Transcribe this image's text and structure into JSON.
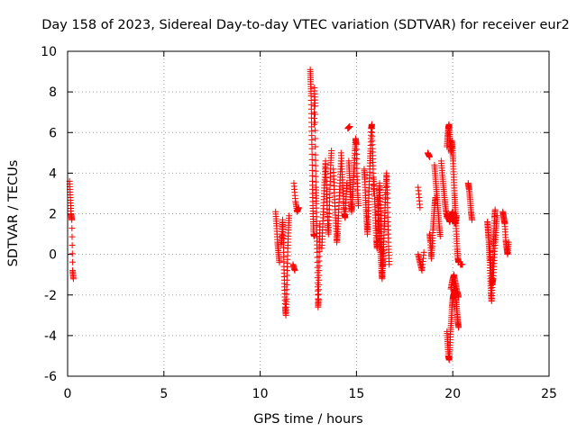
{
  "chart_data": {
    "type": "scatter",
    "title": "Day 158 of 2023, Sidereal Day-to-day VTEC variation (SDTVAR) for receiver eur2",
    "xlabel": "GPS time / hours",
    "ylabel": "SDTVAR / TECUs",
    "xlim": [
      0,
      25
    ],
    "ylim": [
      -6,
      10
    ],
    "x_ticks": [
      0,
      5,
      10,
      15,
      20,
      25
    ],
    "y_ticks": [
      -6,
      -4,
      -2,
      0,
      2,
      4,
      6,
      8,
      10
    ],
    "x_tick_labels": [
      "0",
      "5",
      "10",
      "15",
      "20",
      "25"
    ],
    "y_tick_labels": [
      "-6",
      "-4",
      "-2",
      "0",
      "2",
      "4",
      "6",
      "8",
      "10"
    ],
    "grid": true,
    "marker": "+",
    "color": "#ff0000",
    "series": [
      {
        "name": "SDTVAR",
        "tracks": [
          {
            "t0": 0.1,
            "t1": 0.3,
            "y": [
              3.6,
              2.8,
              2.0,
              1.7,
              -0.8,
              -1.2
            ]
          },
          {
            "t0": 10.8,
            "t1": 11.0,
            "y": [
              2.1,
              1.4,
              0.6,
              0.1,
              -0.4
            ]
          },
          {
            "t0": 11.1,
            "t1": 11.5,
            "y": [
              0.5,
              1.0,
              1.7,
              0.8,
              -0.6,
              -1.6,
              -2.6,
              -3.0,
              -2.2,
              -0.8,
              0.3,
              1.2,
              1.9
            ]
          },
          {
            "t0": 11.7,
            "t1": 11.8,
            "y": [
              -0.5,
              -0.8
            ]
          },
          {
            "t0": 11.75,
            "t1": 12.0,
            "y": [
              3.5,
              2.6,
              2.1,
              2.3
            ]
          },
          {
            "t0": 12.6,
            "t1": 12.8,
            "y": [
              9.1,
              8.5,
              7.8,
              6.5,
              5.2,
              3.6,
              2.4,
              1.6,
              1.0,
              0.9
            ]
          },
          {
            "t0": 12.8,
            "t1": 13.1,
            "y": [
              6.4,
              8.2,
              7.3,
              4.9,
              3.3,
              2.5,
              1.2,
              0.1,
              -1.4,
              -2.6,
              -2.2,
              -0.8,
              0.6,
              1.5
            ]
          },
          {
            "t0": 13.2,
            "t1": 13.7,
            "y": [
              0.3,
              1.2,
              2.1,
              3.0,
              3.8,
              4.6,
              3.6,
              2.6,
              1.5,
              1.0,
              2.0,
              3.2,
              4.4,
              5.1
            ]
          },
          {
            "t0": 13.8,
            "t1": 14.2,
            "y": [
              4.2,
              3.2,
              2.2,
              1.4,
              0.6,
              1.1,
              1.9,
              2.9,
              3.8,
              4.6
            ]
          },
          {
            "t0": 14.2,
            "t1": 14.5,
            "y": [
              5.0,
              4.2,
              3.4,
              2.6,
              2.0,
              1.8,
              2.7,
              3.5
            ]
          },
          {
            "t0": 14.55,
            "t1": 14.65,
            "y": [
              6.2,
              6.3
            ]
          },
          {
            "t0": 14.6,
            "t1": 15.1,
            "y": [
              4.6,
              4.0,
              3.3,
              2.6,
              2.1,
              2.5,
              3.1,
              3.8,
              4.4,
              5.1,
              5.7,
              5.4,
              4.0,
              3.0,
              2.4
            ]
          },
          {
            "t0": 15.4,
            "t1": 15.9,
            "y": [
              4.2,
              3.7,
              2.9,
              2.2,
              1.6,
              1.0,
              1.7,
              2.6,
              3.6,
              4.5,
              5.2,
              6.2,
              6.4,
              5.2,
              4.2,
              3.0
            ]
          },
          {
            "t0": 15.9,
            "t1": 16.4,
            "y": [
              3.7,
              3.0,
              2.2,
              1.4,
              0.7,
              0.3,
              0.9,
              1.8,
              2.8,
              3.5,
              2.6,
              1.6,
              0.6,
              -0.1,
              -0.7,
              0.2
            ]
          },
          {
            "t0": 16.1,
            "t1": 16.7,
            "y": [
              2.8,
              2.2,
              1.6,
              0.9,
              0.4,
              -0.2,
              -0.8,
              -1.2,
              -0.6,
              0.2,
              1.1,
              1.9,
              2.7,
              3.4,
              4.0,
              3.0,
              1.6,
              0.4,
              -0.5
            ]
          },
          {
            "t0": 18.2,
            "t1": 18.3,
            "y": [
              3.3,
              2.3
            ]
          },
          {
            "t0": 18.2,
            "t1": 18.5,
            "y": [
              0.0,
              -0.4,
              -0.8,
              0.1
            ]
          },
          {
            "t0": 18.7,
            "t1": 18.8,
            "y": [
              5.0,
              4.8
            ]
          },
          {
            "t0": 18.8,
            "t1": 19.1,
            "y": [
              1.0,
              0.6,
              -0.2,
              0.4,
              1.2,
              1.8,
              2.4,
              2.8
            ]
          },
          {
            "t0": 19.05,
            "t1": 19.35,
            "y": [
              4.4,
              3.8,
              3.2,
              2.6,
              2.0,
              1.4,
              0.9
            ]
          },
          {
            "t0": 19.4,
            "t1": 19.7,
            "y": [
              4.6,
              3.9,
              3.3,
              2.7,
              2.2,
              1.8
            ]
          },
          {
            "t0": 19.7,
            "t1": 20.3,
            "y": [
              5.3,
              5.8,
              6.2,
              6.4,
              5.9,
              5.4,
              5.0,
              5.6,
              5.2,
              4.6,
              3.8,
              3.0,
              2.4,
              1.8,
              1.0,
              0.3,
              -0.2,
              -0.4
            ]
          },
          {
            "t0": 19.7,
            "t1": 20.2,
            "y": [
              2.0,
              1.8,
              1.6,
              1.9,
              2.1,
              1.7,
              1.5,
              1.9
            ]
          },
          {
            "t0": 19.7,
            "t1": 20.3,
            "y": [
              -3.8,
              -4.4,
              -5.0,
              -5.2,
              -4.6,
              -3.8,
              -3.2,
              -2.6,
              -2.2,
              -2.0,
              -1.9,
              -1.7,
              -2.0,
              -2.4,
              -2.9,
              -3.3,
              -3.6
            ]
          },
          {
            "t0": 19.9,
            "t1": 20.3,
            "y": [
              -1.7,
              -1.3,
              -1.0,
              -1.4,
              -1.8,
              -2.1
            ]
          },
          {
            "t0": 20.4,
            "t1": 20.5,
            "y": [
              -0.5
            ]
          },
          {
            "t0": 20.8,
            "t1": 21.0,
            "y": [
              3.5,
              3.2,
              2.7,
              2.1,
              1.7
            ]
          },
          {
            "t0": 21.8,
            "t1": 22.2,
            "y": [
              1.6,
              1.2,
              0.8,
              0.2,
              -0.4,
              -1.2,
              -1.9,
              -2.3,
              -1.5,
              -0.6,
              0.3,
              1.0,
              1.8,
              2.2
            ]
          },
          {
            "t0": 21.9,
            "t1": 22.3,
            "y": [
              0.6,
              0.0,
              -0.8,
              -1.5,
              -1.2,
              -0.3,
              0.6,
              1.3,
              1.9
            ]
          },
          {
            "t0": 22.6,
            "t1": 22.9,
            "y": [
              2.1,
              1.8,
              1.5,
              0.7,
              0.3,
              0.0,
              0.6
            ]
          }
        ]
      }
    ]
  }
}
